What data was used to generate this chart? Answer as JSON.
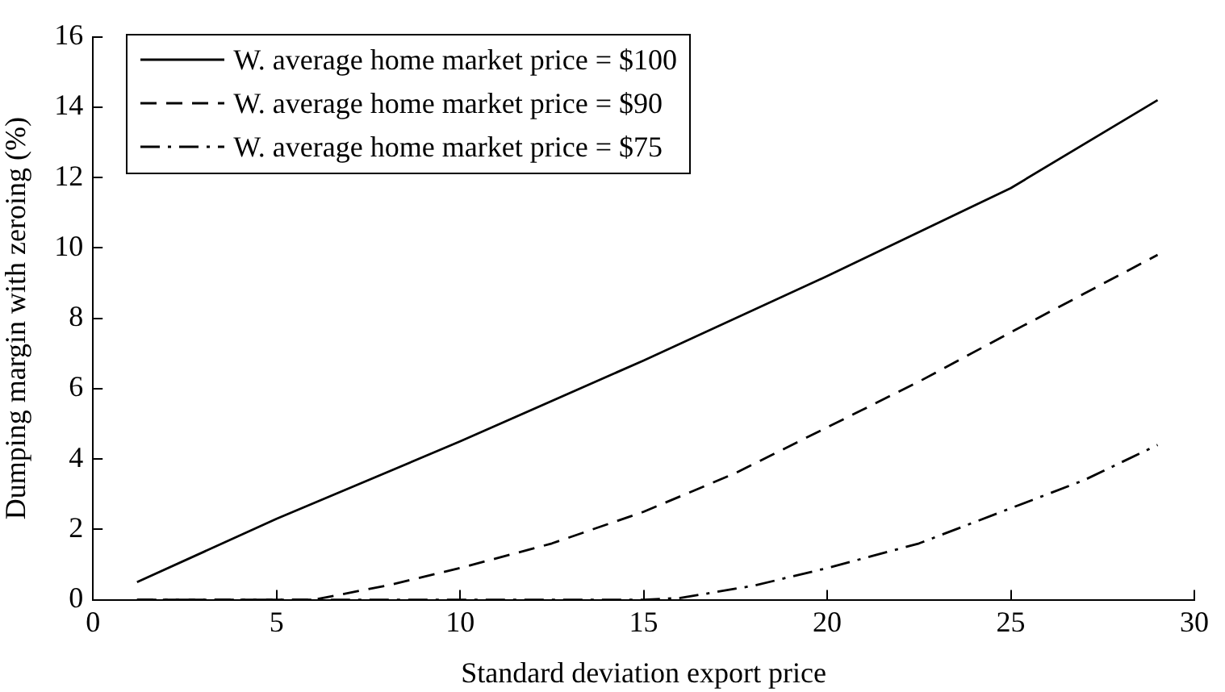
{
  "chart_data": {
    "type": "line",
    "xlabel": "Standard deviation export price",
    "ylabel": "Dumping margin with zeroing (%)",
    "xlim": [
      0,
      30
    ],
    "xticks": [
      0,
      5,
      10,
      15,
      20,
      25,
      30
    ],
    "ylim": [
      0,
      16
    ],
    "yticks": [
      0,
      2,
      4,
      6,
      8,
      10,
      12,
      14,
      16
    ],
    "grid": false,
    "legend": "top left",
    "marker": "none",
    "series": [
      {
        "name": "W. average home market price = $100",
        "color": "#000000",
        "line_style": "solid",
        "x": [
          1.2,
          5,
          10,
          15,
          20,
          25,
          29
        ],
        "values": [
          0.5,
          2.3,
          4.5,
          6.8,
          9.2,
          11.7,
          14.2
        ]
      },
      {
        "name": "W. average home market price = $90",
        "color": "#000000",
        "line_style": "dashed",
        "x": [
          1.2,
          5,
          6,
          8,
          10,
          12.5,
          15,
          17.5,
          20,
          22.5,
          25,
          27,
          29
        ],
        "values": [
          0,
          0,
          0,
          0.4,
          0.9,
          1.6,
          2.5,
          3.6,
          4.9,
          6.2,
          7.6,
          8.7,
          9.8
        ]
      },
      {
        "name": "W. average home market price = $75",
        "color": "#000000",
        "line_style": "dashdot",
        "x": [
          1.2,
          10,
          15,
          16,
          18,
          20,
          22.5,
          25,
          27,
          29
        ],
        "values": [
          0,
          0,
          0,
          0.05,
          0.4,
          0.9,
          1.6,
          2.6,
          3.4,
          4.4
        ]
      }
    ]
  }
}
